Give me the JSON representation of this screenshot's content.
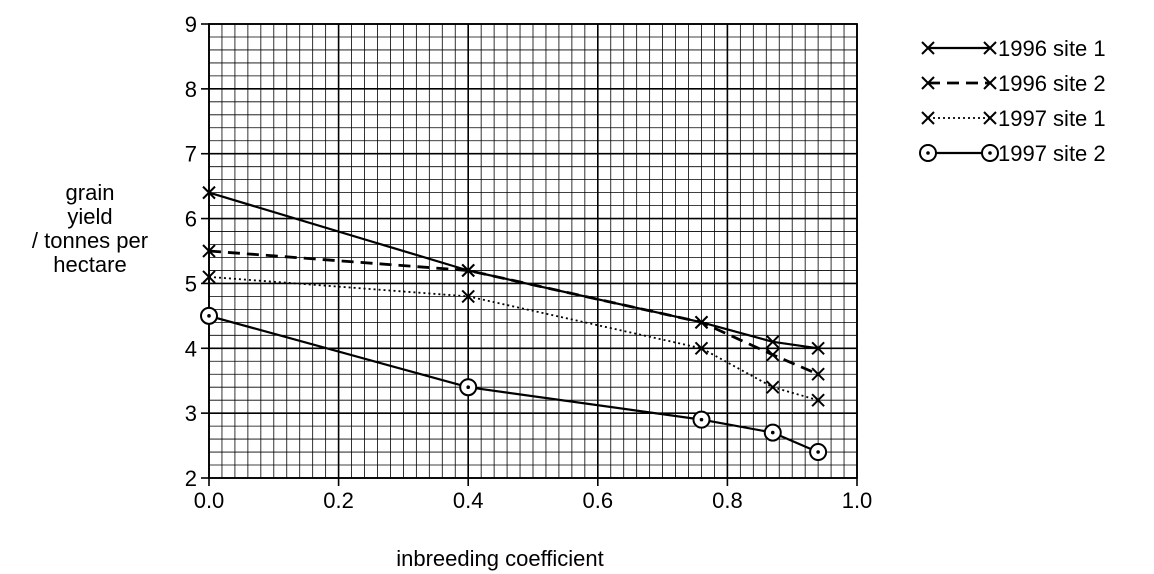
{
  "chart_data": {
    "type": "line",
    "xlabel": "inbreeding coefficient",
    "ylabel": [
      "grain",
      "yield",
      "/ tonnes per",
      "hectare"
    ],
    "xlim": [
      0.0,
      1.0
    ],
    "ylim": [
      2,
      9
    ],
    "x_ticks": [
      "0.0",
      "0.2",
      "0.4",
      "0.6",
      "0.8",
      "1.0"
    ],
    "y_ticks": [
      "2",
      "3",
      "4",
      "5",
      "6",
      "7",
      "8",
      "9"
    ],
    "grid": true,
    "legend_position": "top-right",
    "x": [
      0.0,
      0.4,
      0.76,
      0.87,
      0.94
    ],
    "series": [
      {
        "name": "1996 site 1",
        "values": [
          6.4,
          5.2,
          4.4,
          4.1,
          4.0
        ],
        "line": "solid",
        "marker": "x"
      },
      {
        "name": "1996 site 2",
        "values": [
          5.5,
          5.2,
          4.4,
          3.9,
          3.6
        ],
        "line": "dashed",
        "marker": "x"
      },
      {
        "name": "1997 site 1",
        "values": [
          5.1,
          4.8,
          4.0,
          3.4,
          3.2
        ],
        "line": "dotted",
        "marker": "x"
      },
      {
        "name": "1997 site 2",
        "values": [
          4.5,
          3.4,
          2.9,
          2.7,
          2.4
        ],
        "line": "solid",
        "marker": "circle-dot"
      }
    ]
  }
}
